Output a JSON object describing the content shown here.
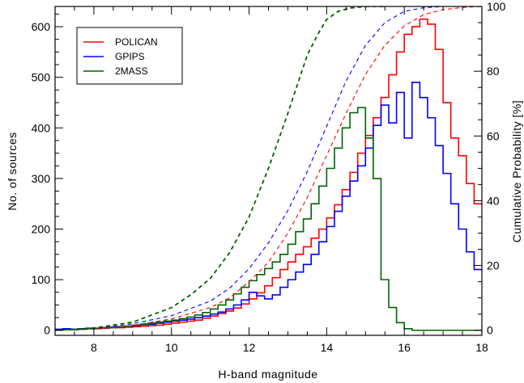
{
  "chart_data": {
    "type": "histogram",
    "xlabel": "H-band magnitude",
    "ylabel": "No. of sources",
    "y2label": "Cumulative Probability [%]",
    "xlim": [
      7,
      18
    ],
    "ylim": [
      -10,
      640
    ],
    "y2lim": [
      -1.5625,
      100
    ],
    "xticks": [
      8,
      10,
      12,
      14,
      16,
      18
    ],
    "yticks": [
      0,
      100,
      200,
      300,
      400,
      500,
      600
    ],
    "y2ticks": [
      0,
      20,
      40,
      60,
      80,
      100
    ],
    "bin_width": 0.2,
    "legend": {
      "position": "top-left",
      "entries": [
        "POLICAN",
        "GPIPS",
        "2MASS"
      ]
    },
    "series": [
      {
        "name": "POLICAN",
        "color": "#ff0000",
        "bin_start": 7.0,
        "counts": [
          2,
          2,
          2,
          2,
          3,
          3,
          4,
          5,
          5,
          6,
          7,
          8,
          9,
          10,
          12,
          14,
          16,
          18,
          20,
          24,
          28,
          33,
          38,
          44,
          52,
          62,
          74,
          88,
          104,
          120,
          135,
          150,
          165,
          182,
          200,
          222,
          248,
          278,
          312,
          350,
          385,
          420,
          460,
          505,
          550,
          585,
          600,
          615,
          605,
          555,
          450,
          380,
          345,
          290,
          250,
          200,
          170,
          130,
          100,
          85,
          65,
          50,
          35,
          25,
          20,
          15,
          10,
          6,
          4,
          3,
          2,
          1,
          1,
          0,
          0,
          0,
          0,
          0,
          0,
          0,
          0,
          0,
          0,
          0,
          0,
          0,
          0,
          0,
          0,
          0,
          0,
          0,
          0,
          0,
          0,
          0,
          0,
          0,
          0,
          0,
          0,
          0,
          0,
          0,
          0,
          0,
          0,
          0,
          0,
          0,
          0,
          0,
          0,
          0,
          0,
          0,
          0,
          0,
          0,
          0,
          0,
          0,
          0,
          0,
          0,
          0,
          0,
          0,
          0,
          0,
          0
        ]
      },
      {
        "name": "GPIPS",
        "color": "#0000ff",
        "bin_start": 7.0,
        "counts": [
          2,
          3,
          2,
          3,
          4,
          4,
          5,
          6,
          7,
          8,
          9,
          11,
          12,
          14,
          16,
          18,
          20,
          22,
          25,
          28,
          32,
          36,
          42,
          50,
          60,
          75,
          68,
          62,
          70,
          85,
          100,
          115,
          130,
          150,
          175,
          205,
          235,
          265,
          295,
          325,
          360,
          405,
          445,
          410,
          470,
          380,
          490,
          460,
          420,
          365,
          310,
          250,
          200,
          155,
          120,
          90,
          70,
          50,
          35,
          25,
          15,
          10,
          6,
          4,
          2,
          1,
          1,
          0,
          0,
          0,
          0,
          0,
          0,
          0,
          0,
          0,
          0,
          0,
          0,
          0,
          0,
          0,
          0,
          0,
          0,
          0,
          0,
          0,
          0,
          0,
          0,
          0,
          0,
          0,
          0,
          0,
          0,
          0,
          0,
          0,
          0,
          0,
          0,
          0,
          0,
          0,
          0,
          0,
          0,
          0,
          0,
          0,
          0,
          0,
          0,
          0,
          0,
          0,
          0,
          0,
          0,
          0,
          0,
          0,
          0,
          0,
          0,
          0,
          0,
          0,
          0
        ]
      },
      {
        "name": "2MASS",
        "color": "#006400",
        "bin_start": 7.0,
        "counts": [
          0,
          1,
          1,
          2,
          3,
          4,
          5,
          5,
          6,
          8,
          10,
          12,
          14,
          16,
          18,
          20,
          23,
          26,
          30,
          35,
          42,
          50,
          60,
          72,
          85,
          98,
          110,
          122,
          135,
          150,
          170,
          195,
          220,
          250,
          285,
          320,
          360,
          400,
          430,
          440,
          380,
          300,
          100,
          45,
          15,
          3,
          0,
          0,
          0,
          0,
          0,
          0,
          0,
          0,
          0,
          0,
          0,
          0,
          0,
          0,
          0,
          0,
          0,
          0,
          0,
          0,
          0,
          0,
          0,
          0,
          0,
          0,
          0,
          0,
          0,
          0,
          0,
          0,
          0,
          0,
          0,
          0,
          0,
          0,
          0,
          0,
          0,
          0,
          0,
          0,
          0,
          0,
          0,
          0,
          0,
          0,
          0,
          0,
          0,
          0,
          0,
          0,
          0,
          0,
          0,
          0,
          0,
          0,
          0,
          0,
          0,
          0,
          0,
          0,
          0,
          0,
          0,
          0,
          0,
          0,
          0,
          0,
          0,
          0,
          0,
          0,
          0,
          0,
          0,
          0,
          0
        ]
      }
    ],
    "cumulative": [
      {
        "name": "POLICAN",
        "color": "#ff0000",
        "x": [
          7.0,
          8,
          9,
          10,
          11,
          11.5,
          12,
          12.5,
          13,
          13.5,
          14,
          14.5,
          15,
          15.5,
          16,
          16.5,
          17,
          17.5,
          18
        ],
        "y": [
          0,
          0.4,
          1.5,
          3.5,
          7,
          10,
          15,
          21,
          30,
          41,
          54,
          67,
          79,
          88,
          94,
          97.5,
          99,
          99.7,
          100
        ]
      },
      {
        "name": "GPIPS",
        "color": "#0000ff",
        "x": [
          7.0,
          8,
          9,
          10,
          11,
          11.5,
          12,
          12.5,
          13,
          13.5,
          14,
          14.5,
          15,
          15.5,
          16,
          16.5,
          17,
          17.5
        ],
        "y": [
          0,
          0.5,
          2,
          4.5,
          9,
          13,
          19,
          27,
          37,
          49,
          63,
          77,
          88,
          95,
          98.5,
          99.6,
          100,
          100
        ]
      },
      {
        "name": "2MASS",
        "color": "#006400",
        "x": [
          7.0,
          8,
          9,
          10,
          10.5,
          11,
          11.5,
          12,
          12.5,
          13,
          13.5,
          13.8,
          14,
          14.3,
          14.6,
          15,
          15.5
        ],
        "y": [
          0,
          0.7,
          2.5,
          7,
          11,
          16,
          24,
          35,
          50,
          67,
          85,
          92,
          96,
          98.5,
          99.5,
          100,
          100
        ]
      }
    ]
  }
}
